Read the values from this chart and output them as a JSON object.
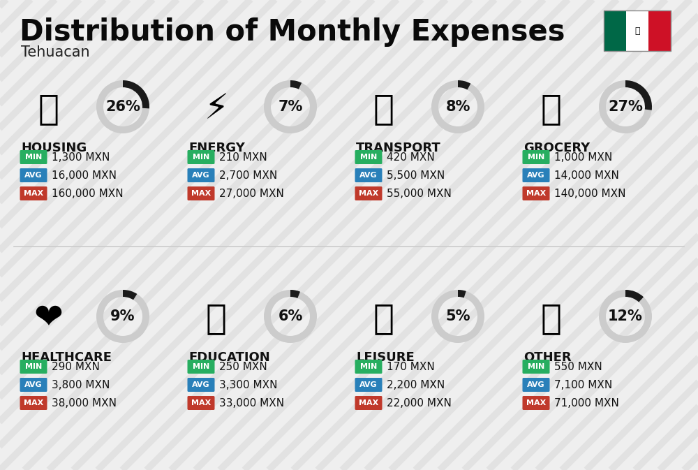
{
  "title": "Distribution of Monthly Expenses",
  "subtitle": "Tehuacan",
  "background_color": "#efefef",
  "categories": [
    {
      "name": "HOUSING",
      "pct": 26,
      "min": "1,300 MXN",
      "avg": "16,000 MXN",
      "max": "160,000 MXN",
      "icon": "🏢",
      "row": 0,
      "col": 0
    },
    {
      "name": "ENERGY",
      "pct": 7,
      "min": "210 MXN",
      "avg": "2,700 MXN",
      "max": "27,000 MXN",
      "icon": "⚡",
      "row": 0,
      "col": 1
    },
    {
      "name": "TRANSPORT",
      "pct": 8,
      "min": "420 MXN",
      "avg": "5,500 MXN",
      "max": "55,000 MXN",
      "icon": "🚌",
      "row": 0,
      "col": 2
    },
    {
      "name": "GROCERY",
      "pct": 27,
      "min": "1,000 MXN",
      "avg": "14,000 MXN",
      "max": "140,000 MXN",
      "icon": "🛒",
      "row": 0,
      "col": 3
    },
    {
      "name": "HEALTHCARE",
      "pct": 9,
      "min": "290 MXN",
      "avg": "3,800 MXN",
      "max": "38,000 MXN",
      "icon": "❤️",
      "row": 1,
      "col": 0
    },
    {
      "name": "EDUCATION",
      "pct": 6,
      "min": "250 MXN",
      "avg": "3,300 MXN",
      "max": "33,000 MXN",
      "icon": "🎓",
      "row": 1,
      "col": 1
    },
    {
      "name": "LEISURE",
      "pct": 5,
      "min": "170 MXN",
      "avg": "2,200 MXN",
      "max": "22,000 MXN",
      "icon": "🛍️",
      "row": 1,
      "col": 2
    },
    {
      "name": "OTHER",
      "pct": 12,
      "min": "550 MXN",
      "avg": "7,100 MXN",
      "max": "71,000 MXN",
      "icon": "💰",
      "row": 1,
      "col": 3
    }
  ],
  "min_color": "#27ae60",
  "avg_color": "#2980b9",
  "max_color": "#c0392b",
  "donut_filled_color": "#1a1a1a",
  "donut_empty_color": "#cccccc",
  "category_name_color": "#111111",
  "value_text_color": "#111111",
  "title_fontsize": 30,
  "subtitle_fontsize": 15,
  "cat_fontsize": 13,
  "val_fontsize": 11,
  "pct_fontsize": 15,
  "badge_fontsize": 8,
  "stripe_color": "#d0d0d0",
  "stripe_alpha": 0.4,
  "flag_green": "#006847",
  "flag_white": "#FFFFFF",
  "flag_red": "#CE1126"
}
